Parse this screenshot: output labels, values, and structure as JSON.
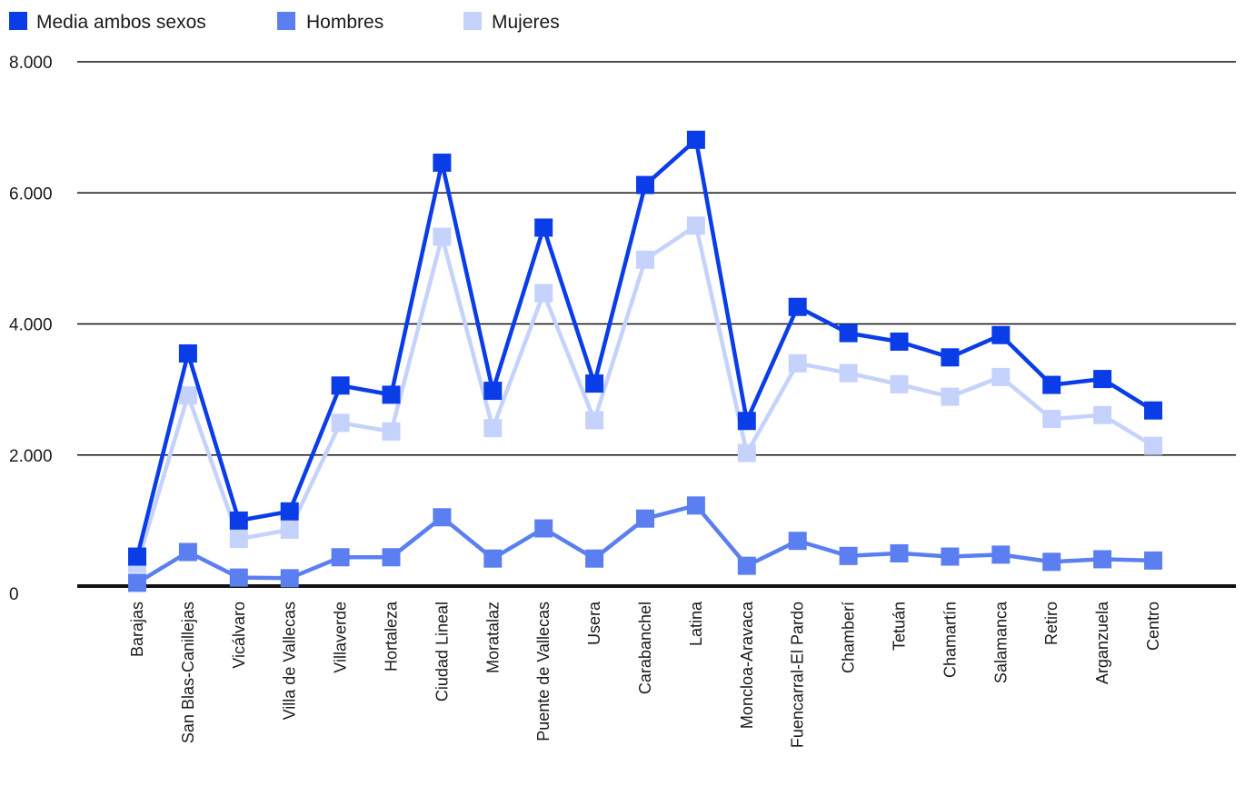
{
  "colors": {
    "media": "#0a3de8",
    "hombres": "#5b7ff0",
    "mujeres": "#c5d2fb",
    "grid": "#111111",
    "text": "#1a1a1a"
  },
  "chart_data": {
    "type": "line",
    "title": "",
    "xlabel": "",
    "ylabel": "",
    "ylim": [
      0,
      8000
    ],
    "y_ticks": [
      0,
      2000,
      4000,
      6000,
      8000
    ],
    "y_tick_labels": [
      "0",
      "2.000",
      "4.000",
      "6.000",
      "8.000"
    ],
    "grid": true,
    "legend_position": "top-left",
    "categories": [
      "Barajas",
      "San Blas-Canillejas",
      "Vicálvaro",
      "Villa de Vallecas",
      "Villaverde",
      "Hortaleza",
      "Ciudad Lineal",
      "Moratalaz",
      "Puente de Vallecas",
      "Usera",
      "Carabanchel",
      "Latina",
      "Moncloa-Aravaca",
      "Fuencarral-El Pardo",
      "Chamberí",
      "Tetuán",
      "Chamartín",
      "Salamanca",
      "Retiro",
      "Arganzuela",
      "Centro"
    ],
    "series": [
      {
        "name": "Media ambos sexos",
        "color_key": "media",
        "values": [
          450,
          3550,
          1000,
          1140,
          3060,
          2920,
          6460,
          2980,
          5470,
          3090,
          6120,
          6810,
          2520,
          4260,
          3860,
          3730,
          3490,
          3830,
          3070,
          3160,
          2680
        ]
      },
      {
        "name": "Hombres",
        "color_key": "hombres",
        "values": [
          50,
          520,
          130,
          120,
          440,
          440,
          1050,
          420,
          880,
          420,
          1030,
          1230,
          310,
          690,
          460,
          500,
          450,
          480,
          370,
          410,
          390
        ]
      },
      {
        "name": "Mujeres",
        "color_key": "mujeres",
        "values": [
          340,
          2910,
          720,
          860,
          2490,
          2360,
          5330,
          2410,
          4470,
          2530,
          4980,
          5500,
          2030,
          3400,
          3250,
          3080,
          2890,
          3190,
          2550,
          2610,
          2140
        ]
      }
    ]
  }
}
